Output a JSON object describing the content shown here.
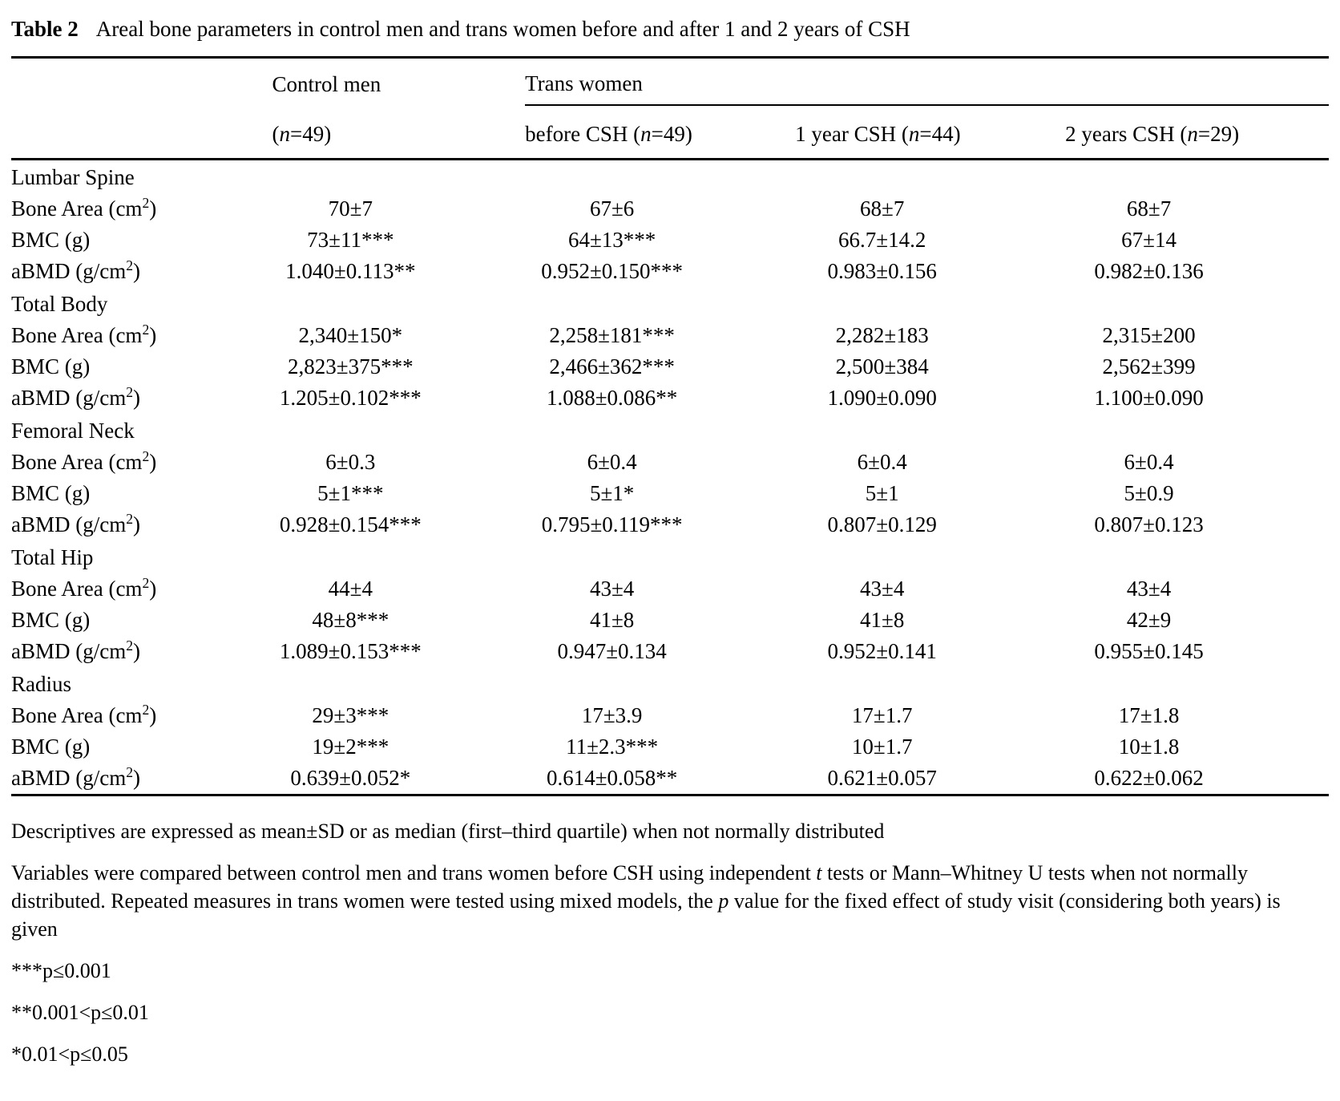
{
  "title": {
    "label": "Table 2",
    "text": "Areal bone parameters in control men and trans women before and after 1 and 2 years of CSH"
  },
  "table": {
    "col_groups": [
      {
        "label": "Control men"
      },
      {
        "label": "Trans women"
      }
    ],
    "col_headers": [
      "(n=49)",
      "before CSH (n=49)",
      "1 year CSH (n=44)",
      "2 years CSH (n=29)"
    ],
    "sections": [
      {
        "name": "Lumbar Spine",
        "rows": [
          {
            "label": "Bone Area (cm²)",
            "values": [
              "70±7",
              "67±6",
              "68±7",
              "68±7"
            ]
          },
          {
            "label": "BMC (g)",
            "values": [
              "73±11***",
              "64±13***",
              "66.7±14.2",
              "67±14"
            ]
          },
          {
            "label": "aBMD (g/cm²)",
            "values": [
              "1.040±0.113**",
              "0.952±0.150***",
              "0.983±0.156",
              "0.982±0.136"
            ]
          }
        ]
      },
      {
        "name": "Total Body",
        "rows": [
          {
            "label": "Bone Area (cm²)",
            "values": [
              "2,340±150*",
              "2,258±181***",
              "2,282±183",
              "2,315±200"
            ]
          },
          {
            "label": "BMC (g)",
            "values": [
              "2,823±375***",
              "2,466±362***",
              "2,500±384",
              "2,562±399"
            ]
          },
          {
            "label": "aBMD (g/cm²)",
            "values": [
              "1.205±0.102***",
              "1.088±0.086**",
              "1.090±0.090",
              "1.100±0.090"
            ]
          }
        ]
      },
      {
        "name": "Femoral Neck",
        "rows": [
          {
            "label": "Bone Area (cm²)",
            "values": [
              "6±0.3",
              "6±0.4",
              "6±0.4",
              "6±0.4"
            ]
          },
          {
            "label": "BMC (g)",
            "values": [
              "5±1***",
              "5±1*",
              "5±1",
              "5±0.9"
            ]
          },
          {
            "label": "aBMD (g/cm²)",
            "values": [
              "0.928±0.154***",
              "0.795±0.119***",
              "0.807±0.129",
              "0.807±0.123"
            ]
          }
        ]
      },
      {
        "name": "Total Hip",
        "rows": [
          {
            "label": "Bone Area (cm²)",
            "values": [
              "44±4",
              "43±4",
              "43±4",
              "43±4"
            ]
          },
          {
            "label": "BMC (g)",
            "values": [
              "48±8***",
              "41±8",
              "41±8",
              "42±9"
            ]
          },
          {
            "label": "aBMD (g/cm²)",
            "values": [
              "1.089±0.153***",
              "0.947±0.134",
              "0.952±0.141",
              "0.955±0.145"
            ]
          }
        ]
      },
      {
        "name": "Radius",
        "rows": [
          {
            "label": "Bone Area (cm²)",
            "values": [
              "29±3***",
              "17±3.9",
              "17±1.7",
              "17±1.8"
            ]
          },
          {
            "label": "BMC (g)",
            "values": [
              "19±2***",
              "11±2.3***",
              "10±1.7",
              "10±1.8"
            ]
          },
          {
            "label": "aBMD (g/cm²)",
            "values": [
              "0.639±0.052*",
              "0.614±0.058**",
              "0.621±0.057",
              "0.622±0.062"
            ]
          }
        ]
      }
    ]
  },
  "footnotes": [
    {
      "segments": [
        {
          "text": "Descriptives are expressed as mean±SD or as median (first–third quartile) when not normally distributed"
        }
      ]
    },
    {
      "segments": [
        {
          "text": "Variables were compared between control men and trans women before CSH using independent "
        },
        {
          "text": "t",
          "italic": true
        },
        {
          "text": " tests or Mann–Whitney U tests when not normally distributed. Repeated measures in trans women were tested using mixed models, the "
        },
        {
          "text": "p",
          "italic": true
        },
        {
          "text": " value for the fixed effect of study visit (considering both years) is given"
        }
      ]
    },
    {
      "segments": [
        {
          "text": "***p≤0.001"
        }
      ]
    },
    {
      "segments": [
        {
          "text": "**0.001<p≤0.01"
        }
      ]
    },
    {
      "segments": [
        {
          "text": "*0.01<p≤0.05"
        }
      ]
    }
  ],
  "colors": {
    "text": "#000000",
    "background": "#ffffff"
  }
}
